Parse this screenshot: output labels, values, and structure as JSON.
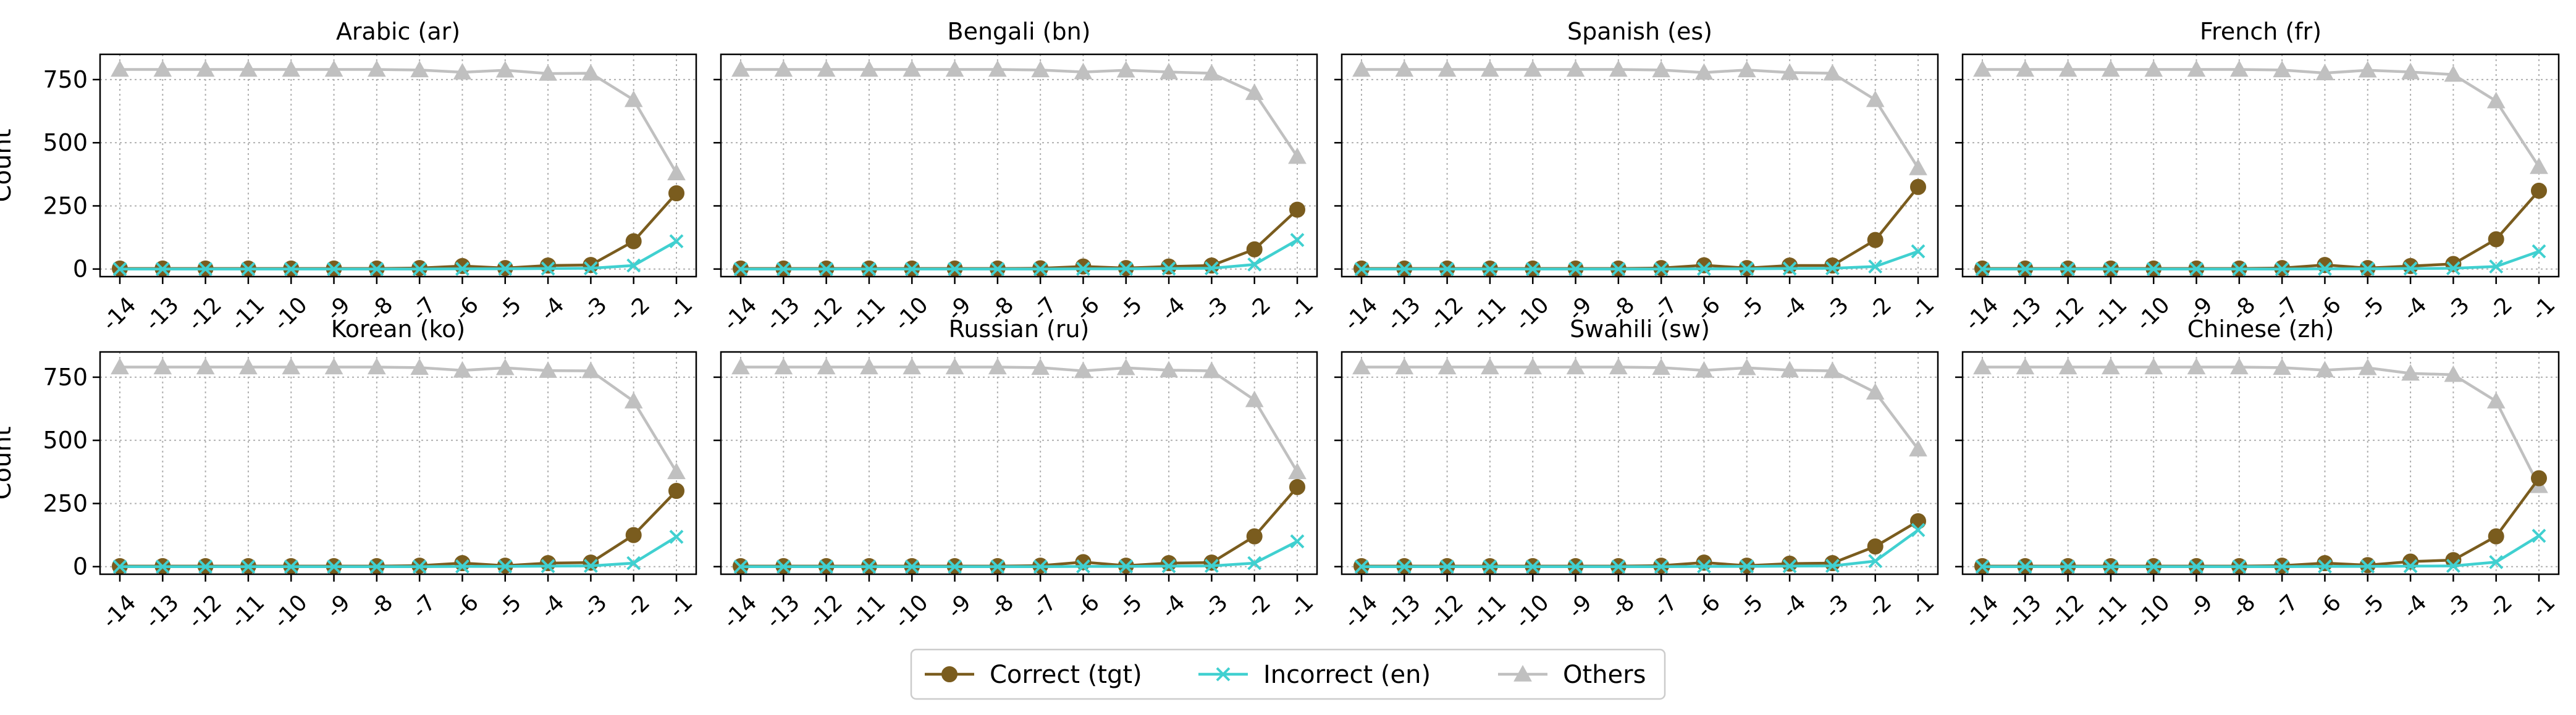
{
  "figure": {
    "ylabel": "Count",
    "colors": {
      "correct": "#7a5c1e",
      "incorrect": "#40d0d0",
      "others": "#c0c0c0"
    }
  },
  "legend": {
    "placement": "bottom-center",
    "entries": [
      "Correct (tgt)",
      "Incorrect (en)",
      "Others"
    ]
  },
  "chart_data": [
    {
      "type": "line",
      "title": "Arabic (ar)",
      "ylabel": "Count",
      "x": [
        "-14",
        "-13",
        "-12",
        "-11",
        "-10",
        "-9",
        "-8",
        "-7",
        "-6",
        "-5",
        "-4",
        "-3",
        "-2",
        "-1"
      ],
      "ylim": [
        -30,
        850
      ],
      "yticks": [
        0,
        250,
        500,
        750
      ],
      "grid": true,
      "series": [
        {
          "name": "Correct (tgt)",
          "values": [
            2,
            2,
            2,
            2,
            2,
            2,
            2,
            4,
            12,
            4,
            14,
            16,
            110,
            300
          ]
        },
        {
          "name": "Incorrect (en)",
          "values": [
            0,
            0,
            0,
            0,
            0,
            0,
            0,
            0,
            1,
            1,
            2,
            3,
            14,
            110
          ]
        },
        {
          "name": "Others",
          "values": [
            790,
            790,
            790,
            790,
            790,
            790,
            790,
            788,
            779,
            787,
            774,
            775,
            670,
            380
          ]
        }
      ]
    },
    {
      "type": "line",
      "title": "Bengali (bn)",
      "x": [
        "-14",
        "-13",
        "-12",
        "-11",
        "-10",
        "-9",
        "-8",
        "-7",
        "-6",
        "-5",
        "-4",
        "-3",
        "-2",
        "-1"
      ],
      "ylim": [
        -30,
        850
      ],
      "yticks": [
        0,
        250,
        500,
        750
      ],
      "grid": true,
      "series": [
        {
          "name": "Correct (tgt)",
          "values": [
            2,
            2,
            2,
            2,
            2,
            2,
            2,
            3,
            10,
            4,
            10,
            14,
            78,
            235
          ]
        },
        {
          "name": "Incorrect (en)",
          "values": [
            0,
            0,
            0,
            0,
            0,
            0,
            0,
            0,
            1,
            1,
            2,
            3,
            18,
            115
          ]
        },
        {
          "name": "Others",
          "values": [
            790,
            790,
            790,
            790,
            790,
            790,
            790,
            788,
            780,
            787,
            780,
            775,
            698,
            445
          ]
        }
      ]
    },
    {
      "type": "line",
      "title": "Spanish (es)",
      "x": [
        "-14",
        "-13",
        "-12",
        "-11",
        "-10",
        "-9",
        "-8",
        "-7",
        "-6",
        "-5",
        "-4",
        "-3",
        "-2",
        "-1"
      ],
      "ylim": [
        -30,
        850
      ],
      "yticks": [
        0,
        250,
        500,
        750
      ],
      "grid": true,
      "series": [
        {
          "name": "Correct (tgt)",
          "values": [
            2,
            2,
            2,
            2,
            2,
            2,
            2,
            4,
            15,
            4,
            14,
            14,
            115,
            325
          ]
        },
        {
          "name": "Incorrect (en)",
          "values": [
            0,
            0,
            0,
            0,
            0,
            0,
            0,
            0,
            1,
            1,
            2,
            3,
            10,
            70
          ]
        },
        {
          "name": "Others",
          "values": [
            790,
            790,
            790,
            790,
            790,
            790,
            790,
            788,
            778,
            788,
            778,
            775,
            670,
            400
          ]
        }
      ]
    },
    {
      "type": "line",
      "title": "French (fr)",
      "x": [
        "-14",
        "-13",
        "-12",
        "-11",
        "-10",
        "-9",
        "-8",
        "-7",
        "-6",
        "-5",
        "-4",
        "-3",
        "-2",
        "-1"
      ],
      "ylim": [
        -30,
        850
      ],
      "yticks": [
        0,
        250,
        500,
        750
      ],
      "grid": true,
      "series": [
        {
          "name": "Correct (tgt)",
          "values": [
            2,
            2,
            2,
            2,
            2,
            2,
            2,
            4,
            16,
            4,
            12,
            20,
            118,
            310
          ]
        },
        {
          "name": "Incorrect (en)",
          "values": [
            0,
            0,
            0,
            0,
            0,
            0,
            0,
            0,
            1,
            1,
            2,
            3,
            10,
            70
          ]
        },
        {
          "name": "Others",
          "values": [
            790,
            790,
            790,
            790,
            790,
            790,
            790,
            788,
            776,
            787,
            780,
            770,
            665,
            405
          ]
        }
      ]
    },
    {
      "type": "line",
      "title": "Korean (ko)",
      "ylabel": "Count",
      "x": [
        "-14",
        "-13",
        "-12",
        "-11",
        "-10",
        "-9",
        "-8",
        "-7",
        "-6",
        "-5",
        "-4",
        "-3",
        "-2",
        "-1"
      ],
      "ylim": [
        -30,
        850
      ],
      "yticks": [
        0,
        250,
        500,
        750
      ],
      "grid": true,
      "series": [
        {
          "name": "Correct (tgt)",
          "values": [
            2,
            2,
            2,
            2,
            2,
            2,
            2,
            4,
            14,
            4,
            14,
            16,
            125,
            300
          ]
        },
        {
          "name": "Incorrect (en)",
          "values": [
            0,
            0,
            0,
            0,
            0,
            0,
            0,
            0,
            1,
            1,
            2,
            3,
            14,
            118
          ]
        },
        {
          "name": "Others",
          "values": [
            790,
            790,
            790,
            790,
            790,
            790,
            790,
            788,
            777,
            787,
            776,
            775,
            655,
            375
          ]
        }
      ]
    },
    {
      "type": "line",
      "title": "Russian (ru)",
      "x": [
        "-14",
        "-13",
        "-12",
        "-11",
        "-10",
        "-9",
        "-8",
        "-7",
        "-6",
        "-5",
        "-4",
        "-3",
        "-2",
        "-1"
      ],
      "ylim": [
        -30,
        850
      ],
      "yticks": [
        0,
        250,
        500,
        750
      ],
      "grid": true,
      "series": [
        {
          "name": "Correct (tgt)",
          "values": [
            2,
            2,
            2,
            2,
            2,
            2,
            2,
            4,
            18,
            4,
            14,
            16,
            120,
            315
          ]
        },
        {
          "name": "Incorrect (en)",
          "values": [
            0,
            0,
            0,
            0,
            0,
            0,
            0,
            0,
            1,
            1,
            2,
            3,
            14,
            100
          ]
        },
        {
          "name": "Others",
          "values": [
            790,
            790,
            790,
            790,
            790,
            790,
            790,
            788,
            775,
            787,
            778,
            775,
            660,
            375
          ]
        }
      ]
    },
    {
      "type": "line",
      "title": "Swahili (sw)",
      "x": [
        "-14",
        "-13",
        "-12",
        "-11",
        "-10",
        "-9",
        "-8",
        "-7",
        "-6",
        "-5",
        "-4",
        "-3",
        "-2",
        "-1"
      ],
      "ylim": [
        -30,
        850
      ],
      "yticks": [
        0,
        250,
        500,
        750
      ],
      "grid": true,
      "series": [
        {
          "name": "Correct (tgt)",
          "values": [
            2,
            2,
            2,
            2,
            2,
            2,
            2,
            4,
            16,
            4,
            12,
            14,
            80,
            180
          ]
        },
        {
          "name": "Incorrect (en)",
          "values": [
            0,
            0,
            0,
            0,
            0,
            0,
            0,
            0,
            1,
            1,
            2,
            3,
            22,
            145
          ]
        },
        {
          "name": "Others",
          "values": [
            790,
            790,
            790,
            790,
            790,
            790,
            790,
            788,
            777,
            787,
            778,
            775,
            690,
            465
          ]
        }
      ]
    },
    {
      "type": "line",
      "title": "Chinese (zh)",
      "x": [
        "-14",
        "-13",
        "-12",
        "-11",
        "-10",
        "-9",
        "-8",
        "-7",
        "-6",
        "-5",
        "-4",
        "-3",
        "-2",
        "-1"
      ],
      "ylim": [
        -30,
        850
      ],
      "yticks": [
        0,
        250,
        500,
        750
      ],
      "grid": true,
      "series": [
        {
          "name": "Correct (tgt)",
          "values": [
            2,
            2,
            2,
            2,
            2,
            2,
            2,
            4,
            14,
            6,
            20,
            26,
            120,
            350
          ]
        },
        {
          "name": "Incorrect (en)",
          "values": [
            0,
            0,
            0,
            0,
            0,
            0,
            0,
            0,
            1,
            1,
            2,
            3,
            18,
            122
          ]
        },
        {
          "name": "Others",
          "values": [
            790,
            790,
            790,
            790,
            790,
            790,
            790,
            788,
            778,
            787,
            765,
            760,
            655,
            320
          ]
        }
      ]
    }
  ]
}
